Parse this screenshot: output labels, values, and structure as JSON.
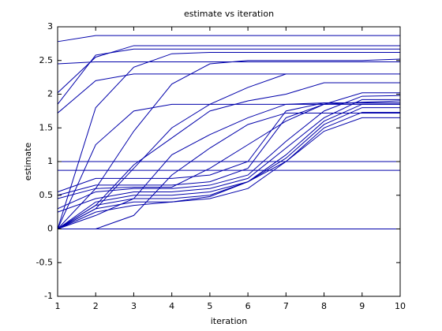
{
  "chart_data": {
    "type": "line",
    "title": "estimate vs iteration",
    "x_label": "iteration",
    "y_label": "estimate",
    "x": [
      1,
      2,
      3,
      4,
      5,
      6,
      7,
      8,
      9,
      10
    ],
    "xlim": [
      1,
      10
    ],
    "xticks": [
      1,
      2,
      3,
      4,
      5,
      6,
      7,
      8,
      9,
      10
    ],
    "ylim": [
      -1,
      3
    ],
    "yticks": [
      -1,
      -0.5,
      0,
      0.5,
      1,
      1.5,
      2,
      2.5,
      3
    ],
    "series": [
      {
        "color": "#0000aa",
        "values": [
          2.78,
          2.87,
          2.87,
          2.87,
          2.87,
          2.87,
          2.87,
          2.87,
          2.87,
          2.87
        ]
      },
      {
        "color": "#0000aa",
        "values": [
          2.45,
          2.48,
          2.48,
          2.48,
          2.48,
          2.48,
          2.48,
          2.48,
          2.48,
          2.48
        ]
      },
      {
        "color": "#0000aa",
        "values": [
          2.02,
          2.55,
          2.72,
          2.72,
          2.72,
          2.72,
          2.72,
          2.72,
          2.72,
          2.72
        ]
      },
      {
        "color": "#0000aa",
        "values": [
          1.85,
          2.58,
          2.67,
          2.67,
          2.67,
          2.67,
          2.67,
          2.67,
          2.67,
          2.67
        ]
      },
      {
        "color": "#0000aa",
        "values": [
          1.72,
          2.2,
          2.3,
          2.3,
          2.3,
          2.3,
          2.3,
          2.3,
          2.3,
          2.3
        ]
      },
      {
        "color": "#0000aa",
        "values": [
          0,
          1.8,
          2.4,
          2.6,
          2.62,
          2.62,
          2.62,
          2.62,
          2.62,
          2.62
        ]
      },
      {
        "color": "#0000aa",
        "values": [
          0,
          1.25,
          1.75,
          1.85,
          1.85,
          1.85,
          1.85,
          1.85,
          1.85,
          1.85
        ]
      },
      {
        "color": "#0000aa",
        "values": [
          0,
          0.6,
          1.45,
          2.15,
          2.45,
          2.5,
          2.5,
          2.5,
          2.5,
          2.52
        ]
      },
      {
        "color": "#0000aa",
        "values": [
          0,
          0.3,
          0.9,
          1.5,
          1.85,
          2.1,
          2.3,
          null,
          null,
          null
        ]
      },
      {
        "color": "#0000aa",
        "values": [
          1,
          1,
          1,
          1,
          1,
          1,
          1,
          1,
          1,
          1
        ]
      },
      {
        "color": "#0000aa",
        "values": [
          0.87,
          0.87,
          0.87,
          0.87,
          0.87,
          0.87,
          0.87,
          0.87,
          0.87,
          0.87
        ]
      },
      {
        "color": "#0000aa",
        "values": [
          0,
          0,
          0,
          0,
          0,
          0,
          0,
          0,
          0,
          0
        ]
      },
      {
        "color": "#0000aa",
        "values": [
          0,
          0.35,
          0.95,
          1.35,
          1.75,
          1.9,
          2.0,
          2.17,
          2.17,
          2.17
        ]
      },
      {
        "color": "#0000aa",
        "values": [
          0,
          0.2,
          0.45,
          1.1,
          1.4,
          1.65,
          1.85,
          1.87,
          1.87,
          1.87
        ]
      },
      {
        "color": "#0000aa",
        "values": [
          0.55,
          0.75,
          0.75,
          0.75,
          0.8,
          1.0,
          1.75,
          1.87,
          1.87,
          1.87
        ]
      },
      {
        "color": "#0000aa",
        "values": [
          0.5,
          0.65,
          0.65,
          0.65,
          0.7,
          0.9,
          1.65,
          1.85,
          1.88,
          1.9
        ]
      },
      {
        "color": "#0000aa",
        "values": [
          0.45,
          0.6,
          0.62,
          0.62,
          0.9,
          1.25,
          1.6,
          1.85,
          2.02,
          2.02
        ]
      },
      {
        "color": "#0000aa",
        "values": [
          0.3,
          0.55,
          0.6,
          0.6,
          0.65,
          0.8,
          1.3,
          1.75,
          1.97,
          1.98
        ]
      },
      {
        "color": "#0000aa",
        "values": [
          0.25,
          0.45,
          0.55,
          0.55,
          0.6,
          0.75,
          1.2,
          1.65,
          1.92,
          1.92
        ]
      },
      {
        "color": "#0000aa",
        "values": [
          0,
          0.4,
          0.5,
          0.5,
          0.55,
          0.7,
          1.1,
          1.6,
          1.85,
          1.85
        ]
      },
      {
        "color": "#0000aa",
        "values": [
          0,
          0.35,
          0.45,
          0.45,
          0.5,
          0.7,
          1.05,
          1.55,
          1.8,
          1.8
        ]
      },
      {
        "color": "#0000aa",
        "values": [
          0,
          0,
          0.2,
          0.8,
          1.2,
          1.55,
          1.72,
          1.72,
          1.72,
          1.72
        ]
      },
      {
        "color": "#0000aa",
        "values": [
          0,
          0.3,
          0.4,
          0.4,
          0.48,
          0.7,
          1.0,
          1.5,
          1.73,
          1.73
        ]
      },
      {
        "color": "#0000aa",
        "values": [
          0,
          0.25,
          0.35,
          0.4,
          0.45,
          0.6,
          1.0,
          1.45,
          1.65,
          1.65
        ]
      }
    ]
  }
}
